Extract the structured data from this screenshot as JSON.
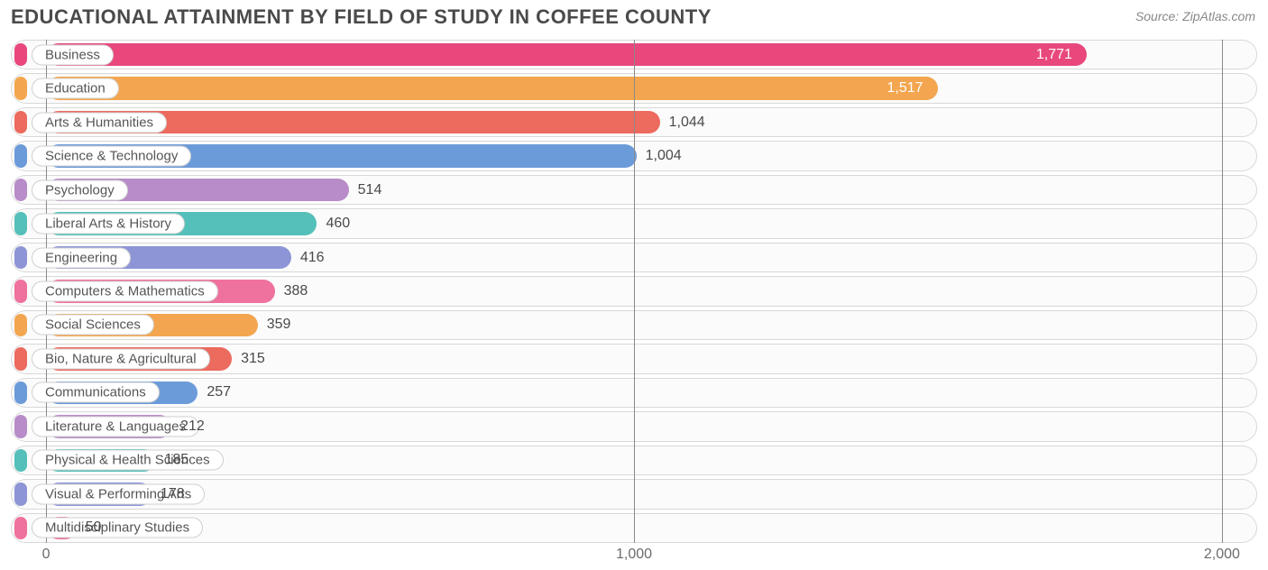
{
  "title": "EDUCATIONAL ATTAINMENT BY FIELD OF STUDY IN COFFEE COUNTY",
  "source": "Source: ZipAtlas.com",
  "chart": {
    "type": "bar-horizontal",
    "background_color": "#ffffff",
    "track_bg": "#fbfbfb",
    "track_border": "#d8d8d8",
    "grid_color": "#8a8a8a",
    "xlim": [
      -60,
      2060
    ],
    "xticks": [
      0,
      1000,
      2000
    ],
    "xtick_labels": [
      "0",
      "1,000",
      "2,000"
    ],
    "label_fontsize": 16,
    "title_fontsize": 22,
    "value_inside_threshold": 1300,
    "bars": [
      {
        "category": "Business",
        "value": 1771,
        "value_label": "1,771",
        "color": "#e8487c"
      },
      {
        "category": "Education",
        "value": 1517,
        "value_label": "1,517",
        "color": "#f3a64f"
      },
      {
        "category": "Arts & Humanities",
        "value": 1044,
        "value_label": "1,044",
        "color": "#ec6a5e"
      },
      {
        "category": "Science & Technology",
        "value": 1004,
        "value_label": "1,004",
        "color": "#6c9bd9"
      },
      {
        "category": "Psychology",
        "value": 514,
        "value_label": "514",
        "color": "#b88cc8"
      },
      {
        "category": "Liberal Arts & History",
        "value": 460,
        "value_label": "460",
        "color": "#55c0b9"
      },
      {
        "category": "Engineering",
        "value": 416,
        "value_label": "416",
        "color": "#8d95d6"
      },
      {
        "category": "Computers & Mathematics",
        "value": 388,
        "value_label": "388",
        "color": "#ef719e"
      },
      {
        "category": "Social Sciences",
        "value": 359,
        "value_label": "359",
        "color": "#f3a64f"
      },
      {
        "category": "Bio, Nature & Agricultural",
        "value": 315,
        "value_label": "315",
        "color": "#ec6a5e"
      },
      {
        "category": "Communications",
        "value": 257,
        "value_label": "257",
        "color": "#6c9bd9"
      },
      {
        "category": "Literature & Languages",
        "value": 212,
        "value_label": "212",
        "color": "#b88cc8"
      },
      {
        "category": "Physical & Health Sciences",
        "value": 185,
        "value_label": "185",
        "color": "#55c0b9"
      },
      {
        "category": "Visual & Performing Arts",
        "value": 178,
        "value_label": "178",
        "color": "#8d95d6"
      },
      {
        "category": "Multidisciplinary Studies",
        "value": 50,
        "value_label": "50",
        "color": "#ef719e"
      }
    ]
  }
}
